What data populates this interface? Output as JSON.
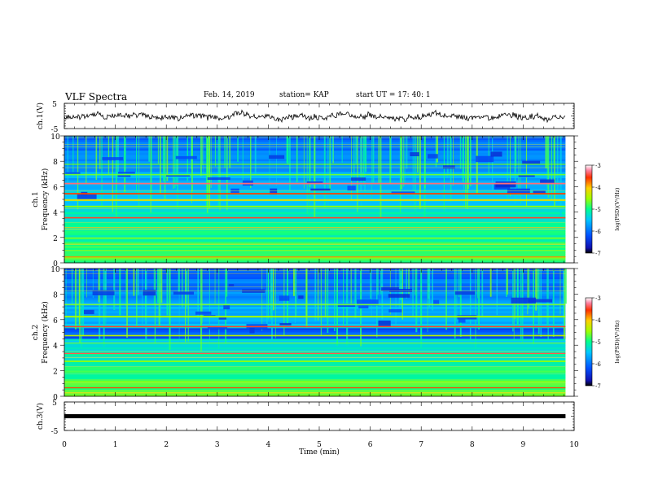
{
  "header": {
    "title": "VLF Spectra",
    "date": "Feb. 14, 2019",
    "station": "station= KAP",
    "start": "start  UT =   17: 40: 1"
  },
  "chart_data": [
    {
      "type": "line",
      "panel": "ch1-waveform",
      "ylabel": "ch.1(V)",
      "ylim": [
        -5,
        5
      ],
      "yticks": [
        "5",
        "-5"
      ],
      "xlim": [
        0,
        10
      ],
      "x_end": 9.83,
      "y_approx_mean": 0,
      "y_approx_range": [
        -2.5,
        2.5
      ]
    },
    {
      "type": "heatmap",
      "panel": "ch1-spectrogram",
      "ylabel_channel": "ch.1",
      "ylabel": "Frequency (kHz)",
      "ylim": [
        0,
        10
      ],
      "yticks": [
        "0",
        "2",
        "4",
        "6",
        "8",
        "10"
      ],
      "xlim": [
        0,
        10
      ],
      "x_end": 9.83,
      "colorbar": {
        "label": "log(PSD)(V²/Hz)",
        "range": [
          -7,
          -3
        ],
        "ticks": [
          "-3",
          "-4",
          "-5",
          "-6",
          "-7"
        ]
      }
    },
    {
      "type": "heatmap",
      "panel": "ch2-spectrogram",
      "ylabel_channel": "ch.2",
      "ylabel": "Frequency (kHz)",
      "ylim": [
        0,
        10
      ],
      "yticks": [
        "0",
        "2",
        "4",
        "6",
        "8",
        "10"
      ],
      "xlim": [
        0,
        10
      ],
      "x_end": 9.83,
      "colorbar": {
        "label": "log(PSD)(V²/Hz)",
        "range": [
          -7,
          -3
        ],
        "ticks": [
          "-3",
          "-4",
          "-5",
          "-6",
          "-7"
        ]
      }
    },
    {
      "type": "line",
      "panel": "ch3-waveform",
      "ylabel": "ch.3(V)",
      "ylim": [
        -5,
        5
      ],
      "yticks": [
        "5",
        "-5"
      ],
      "xlim": [
        0,
        10
      ],
      "x_end": 9.83,
      "y_approx_mean": 0
    }
  ],
  "xaxis": {
    "label": "Time  (min)",
    "ticks": [
      "0",
      "1",
      "2",
      "3",
      "4",
      "5",
      "6",
      "7",
      "8",
      "9",
      "10"
    ]
  }
}
